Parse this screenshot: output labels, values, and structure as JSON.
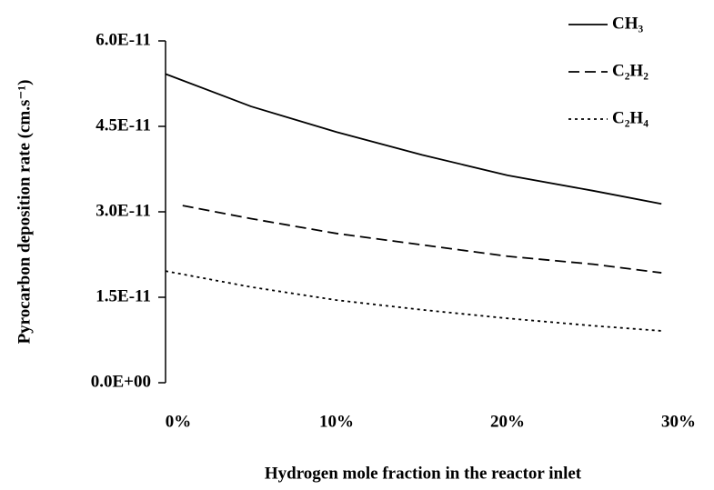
{
  "chart_data": {
    "type": "line",
    "xlabel": "Hydrogen mole fraction in the reactor inlet",
    "ylabel": "Pyrocarbon deposition rate  (cm.s⁻¹)",
    "xlim": [
      0,
      30
    ],
    "xticks": [
      {
        "value": 0,
        "label": "0%"
      },
      {
        "value": 10,
        "label": "10%"
      },
      {
        "value": 20,
        "label": "20%"
      },
      {
        "value": 30,
        "label": "30%"
      }
    ],
    "ylim": [
      0,
      6e-11
    ],
    "yticks": [
      {
        "value": 0,
        "label": "0.0E+00"
      },
      {
        "value": 1.5e-11,
        "label": "1.5E-11"
      },
      {
        "value": 3e-11,
        "label": "3.0E-11"
      },
      {
        "value": 4.5e-11,
        "label": "4.5E-11"
      },
      {
        "value": 6e-11,
        "label": "6.0E-11"
      }
    ],
    "grid": false,
    "legend": "top-right",
    "series": [
      {
        "name": "CH₃",
        "color": "#000000",
        "style": "solid",
        "x": [
          0,
          5,
          10,
          15,
          20,
          25,
          29
        ],
        "values": [
          5.42e-11,
          4.85e-11,
          4.4e-11,
          4e-11,
          3.64e-11,
          3.37e-11,
          3.14e-11
        ]
      },
      {
        "name": "C₂H₂",
        "color": "#000000",
        "style": "dashed",
        "x": [
          1,
          5,
          10,
          15,
          20,
          25,
          29
        ],
        "values": [
          3.11e-11,
          2.88e-11,
          2.62e-11,
          2.42e-11,
          2.22e-11,
          2.08e-11,
          1.93e-11
        ]
      },
      {
        "name": "C₂H₄",
        "color": "#000000",
        "style": "dotted",
        "x": [
          0,
          5,
          10,
          15,
          20,
          25,
          29
        ],
        "values": [
          1.96e-11,
          1.68e-11,
          1.45e-11,
          1.28e-11,
          1.13e-11,
          1e-11,
          9.1e-12
        ]
      }
    ]
  }
}
